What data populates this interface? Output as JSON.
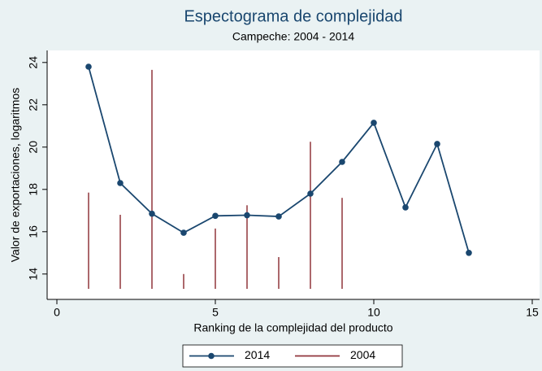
{
  "chart_data": {
    "type": "line",
    "title": "Espectograma de complejidad",
    "subtitle": "Campeche: 2004 - 2014",
    "xlabel": "Ranking de la complejidad del producto",
    "ylabel": "Valor de exportaciones, logaritmos",
    "xlim": [
      0,
      15
    ],
    "xticks": [
      0,
      5,
      10,
      15
    ],
    "ylim": [
      13.3,
      24.3
    ],
    "yticks": [
      14,
      16,
      18,
      20,
      22,
      24
    ],
    "legend": "bottom",
    "series": [
      {
        "name": "2014",
        "type": "line",
        "color": "#1a476f",
        "x": [
          1,
          2,
          3,
          4,
          5,
          6,
          7,
          8,
          9,
          10,
          11,
          12,
          13
        ],
        "values": [
          23.8,
          18.3,
          16.85,
          15.95,
          16.75,
          16.78,
          16.72,
          17.8,
          19.3,
          21.15,
          17.15,
          20.15,
          15.0
        ]
      },
      {
        "name": "2004",
        "type": "spike",
        "color": "#90353b",
        "x": [
          1,
          2,
          3,
          4,
          5,
          6,
          7,
          8,
          9
        ],
        "values": [
          17.85,
          16.8,
          23.65,
          14.0,
          16.15,
          17.25,
          14.8,
          20.25,
          17.6
        ]
      }
    ]
  }
}
